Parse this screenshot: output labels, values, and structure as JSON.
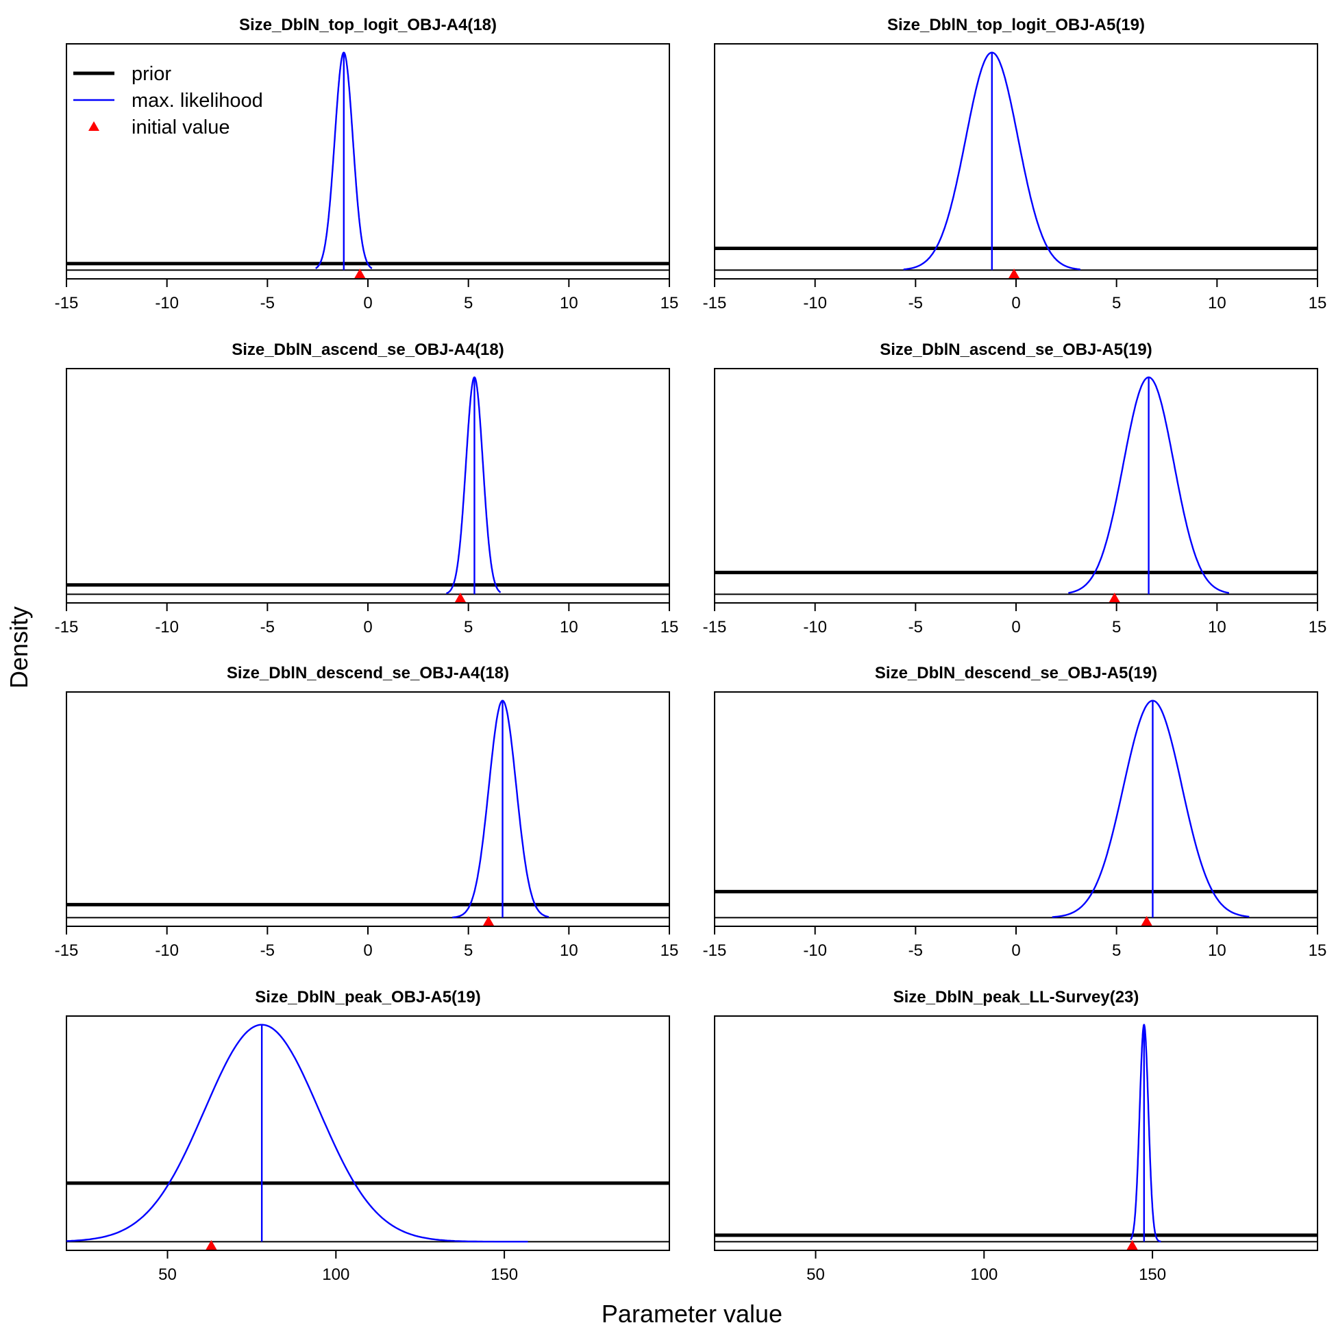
{
  "chart_data": {
    "type": "line",
    "ylabel": "Density",
    "xlabel": "Parameter value",
    "legend": {
      "placement": "top-left of first panel",
      "entries": [
        {
          "label": "prior",
          "color": "#000000",
          "style": "thick-line"
        },
        {
          "label": "max. likelihood",
          "color": "#0000ff",
          "style": "line"
        },
        {
          "label": "initial value",
          "color": "#ff0000",
          "style": "triangle"
        }
      ]
    },
    "colors": {
      "prior": "#000000",
      "mle": "#0000ff",
      "initial": "#ff0000"
    },
    "panels": [
      {
        "title": "Size_DblN_top_logit_OBJ-A4(18)",
        "xlim": [
          -15,
          15
        ],
        "xticks": [
          "-15",
          "-10",
          "-5",
          "0",
          "5",
          "10",
          "15"
        ],
        "xtick_values": [
          -15,
          -10,
          -5,
          0,
          5,
          10,
          15
        ],
        "prior_level": 0.03,
        "mle_mean": -1.2,
        "mle_sd": 0.45,
        "curve_range": [
          -2.6,
          0.2
        ],
        "initial_value": -0.4
      },
      {
        "title": "Size_DblN_top_logit_OBJ-A5(19)",
        "xlim": [
          -15,
          15
        ],
        "xticks": [
          "-15",
          "-10",
          "-5",
          "0",
          "5",
          "10",
          "15"
        ],
        "xtick_values": [
          -15,
          -10,
          -5,
          0,
          5,
          10,
          15
        ],
        "prior_level": 0.1,
        "mle_mean": -1.2,
        "mle_sd": 1.3,
        "curve_range": [
          -5.6,
          3.2
        ],
        "initial_value": -0.1
      },
      {
        "title": "Size_DblN_ascend_se_OBJ-A4(18)",
        "xlim": [
          -15,
          15
        ],
        "xticks": [
          "-15",
          "-10",
          "-5",
          "0",
          "5",
          "10",
          "15"
        ],
        "xtick_values": [
          -15,
          -10,
          -5,
          0,
          5,
          10,
          15
        ],
        "prior_level": 0.043,
        "mle_mean": 5.3,
        "mle_sd": 0.42,
        "curve_range": [
          3.9,
          6.6
        ],
        "initial_value": 4.6
      },
      {
        "title": "Size_DblN_ascend_se_OBJ-A5(19)",
        "xlim": [
          -15,
          15
        ],
        "xticks": [
          "-15",
          "-10",
          "-5",
          "0",
          "5",
          "10",
          "15"
        ],
        "xtick_values": [
          -15,
          -10,
          -5,
          0,
          5,
          10,
          15
        ],
        "prior_level": 0.1,
        "mle_mean": 6.6,
        "mle_sd": 1.25,
        "curve_range": [
          2.6,
          10.6
        ],
        "initial_value": 4.9
      },
      {
        "title": "Size_DblN_descend_se_OBJ-A4(18)",
        "xlim": [
          -15,
          15
        ],
        "xticks": [
          "-15",
          "-10",
          "-5",
          "0",
          "5",
          "10",
          "15"
        ],
        "xtick_values": [
          -15,
          -10,
          -5,
          0,
          5,
          10,
          15
        ],
        "prior_level": 0.06,
        "mle_mean": 6.7,
        "mle_sd": 0.68,
        "curve_range": [
          4.2,
          9.0
        ],
        "initial_value": 6.0
      },
      {
        "title": "Size_DblN_descend_se_OBJ-A5(19)",
        "xlim": [
          -15,
          15
        ],
        "xticks": [
          "-15",
          "-10",
          "-5",
          "0",
          "5",
          "10",
          "15"
        ],
        "xtick_values": [
          -15,
          -10,
          -5,
          0,
          5,
          10,
          15
        ],
        "prior_level": 0.12,
        "mle_mean": 6.8,
        "mle_sd": 1.45,
        "curve_range": [
          1.8,
          11.6
        ],
        "initial_value": 6.5
      },
      {
        "title": "Size_DblN_peak_OBJ-A5(19)",
        "xlim": [
          20,
          199
        ],
        "xticks": [
          "50",
          "100",
          "150"
        ],
        "xtick_values": [
          50,
          100,
          150
        ],
        "prior_level": 0.27,
        "mle_mean": 78,
        "mle_sd": 17,
        "curve_range": [
          20,
          157
        ],
        "initial_value": 63
      },
      {
        "title": "Size_DblN_peak_LL-Survey(23)",
        "xlim": [
          20,
          199
        ],
        "xticks": [
          "50",
          "100",
          "150"
        ],
        "xtick_values": [
          50,
          100,
          150
        ],
        "prior_level": 0.03,
        "mle_mean": 147.5,
        "mle_sd": 1.3,
        "curve_range": [
          143.5,
          152.5
        ],
        "initial_value": 144
      }
    ]
  }
}
